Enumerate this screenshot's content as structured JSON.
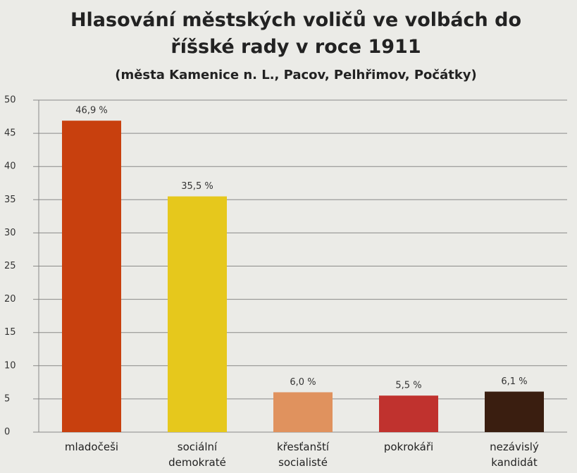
{
  "chart_data": {
    "type": "bar",
    "title": "Hlasování městských voličů ve volbách do říšské rady v roce 1911",
    "subtitle": "(města Kamenice n. L., Pacov, Pelhřimov, Počátky)",
    "categories": [
      "mladočeši",
      "sociální demokraté",
      "křesťanští socialisté",
      "pokrokáři",
      "nezávislý kandidát"
    ],
    "series": [
      {
        "values": [
          46.9,
          35.5,
          6.0,
          5.5,
          6.1
        ],
        "value_labels": [
          "46,9 %",
          "35,5 %",
          "6,0 %",
          "5,5 %",
          "6,1 %"
        ],
        "colors": [
          "#c8400e",
          "#e6c81c",
          "#e0925e",
          "#c0322e",
          "#3a1e10"
        ]
      }
    ],
    "ylim": [
      0,
      50
    ],
    "yticks": [
      0,
      5,
      10,
      15,
      20,
      25,
      30,
      35,
      40,
      45,
      50
    ],
    "grid": true
  }
}
